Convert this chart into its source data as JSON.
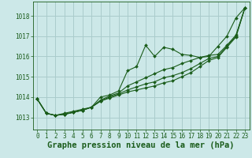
{
  "title": "Graphe pression niveau de la mer (hPa)",
  "background_color": "#cce8e8",
  "grid_color": "#aacccc",
  "line_color": "#1a5c1a",
  "marker_color": "#1a5c1a",
  "xlim": [
    -0.5,
    23.5
  ],
  "ylim": [
    1012.4,
    1018.7
  ],
  "xticks": [
    0,
    1,
    2,
    3,
    4,
    5,
    6,
    7,
    8,
    9,
    10,
    11,
    12,
    13,
    14,
    15,
    16,
    17,
    18,
    19,
    20,
    21,
    22,
    23
  ],
  "yticks": [
    1013,
    1014,
    1015,
    1016,
    1017,
    1018
  ],
  "series": [
    [
      1013.9,
      1013.2,
      1013.1,
      1013.2,
      1013.3,
      1013.4,
      1013.5,
      1014.0,
      1014.1,
      1014.3,
      1015.3,
      1015.5,
      1016.55,
      1016.0,
      1016.45,
      1016.35,
      1016.1,
      1016.05,
      1015.95,
      1016.0,
      1016.5,
      1017.0,
      1017.9,
      1018.4
    ],
    [
      1013.9,
      1013.2,
      1013.1,
      1013.15,
      1013.25,
      1013.35,
      1013.5,
      1013.85,
      1014.05,
      1014.2,
      1014.55,
      1014.75,
      1014.95,
      1015.15,
      1015.35,
      1015.45,
      1015.65,
      1015.8,
      1015.95,
      1016.05,
      1016.1,
      1016.55,
      1017.05,
      1018.4
    ],
    [
      1013.9,
      1013.2,
      1013.1,
      1013.15,
      1013.25,
      1013.35,
      1013.5,
      1013.8,
      1014.0,
      1014.15,
      1014.35,
      1014.5,
      1014.65,
      1014.75,
      1014.95,
      1015.05,
      1015.2,
      1015.4,
      1015.65,
      1015.9,
      1016.0,
      1016.5,
      1017.0,
      1018.4
    ],
    [
      1013.9,
      1013.2,
      1013.1,
      1013.15,
      1013.25,
      1013.35,
      1013.5,
      1013.8,
      1013.95,
      1014.1,
      1014.25,
      1014.35,
      1014.45,
      1014.55,
      1014.7,
      1014.8,
      1015.0,
      1015.2,
      1015.5,
      1015.8,
      1015.95,
      1016.45,
      1016.95,
      1018.4
    ]
  ],
  "title_fontsize": 7.5,
  "tick_fontsize": 5.5,
  "title_color": "#1a5c1a",
  "tick_color": "#1a5c1a",
  "border_color": "#1a5c1a"
}
